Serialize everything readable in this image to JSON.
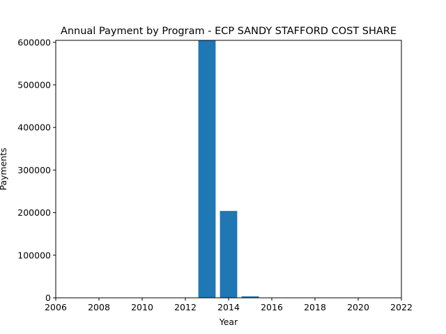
{
  "chart_data": {
    "type": "bar",
    "title": "Annual Payment by Program - ECP SANDY STAFFORD COST SHARE",
    "xlabel": "Year",
    "ylabel": "Payments",
    "x": [
      2013,
      2014,
      2015
    ],
    "values": [
      604500,
      204000,
      3500
    ],
    "bar_width": 0.8,
    "xlim": [
      2006,
      2022
    ],
    "ylim": [
      0,
      604500
    ],
    "xticks": [
      2006,
      2008,
      2010,
      2012,
      2014,
      2016,
      2018,
      2020,
      2022
    ],
    "xtick_labels": [
      "2006",
      "2008",
      "2010",
      "2012",
      "2014",
      "2016",
      "2018",
      "2020",
      "2022"
    ],
    "yticks": [
      0,
      100000,
      200000,
      300000,
      400000,
      500000,
      600000
    ],
    "ytick_labels": [
      "0",
      "100000",
      "200000",
      "300000",
      "400000",
      "500000",
      "600000"
    ],
    "grid": false,
    "colors": {
      "bar": "#1f77b4"
    }
  }
}
